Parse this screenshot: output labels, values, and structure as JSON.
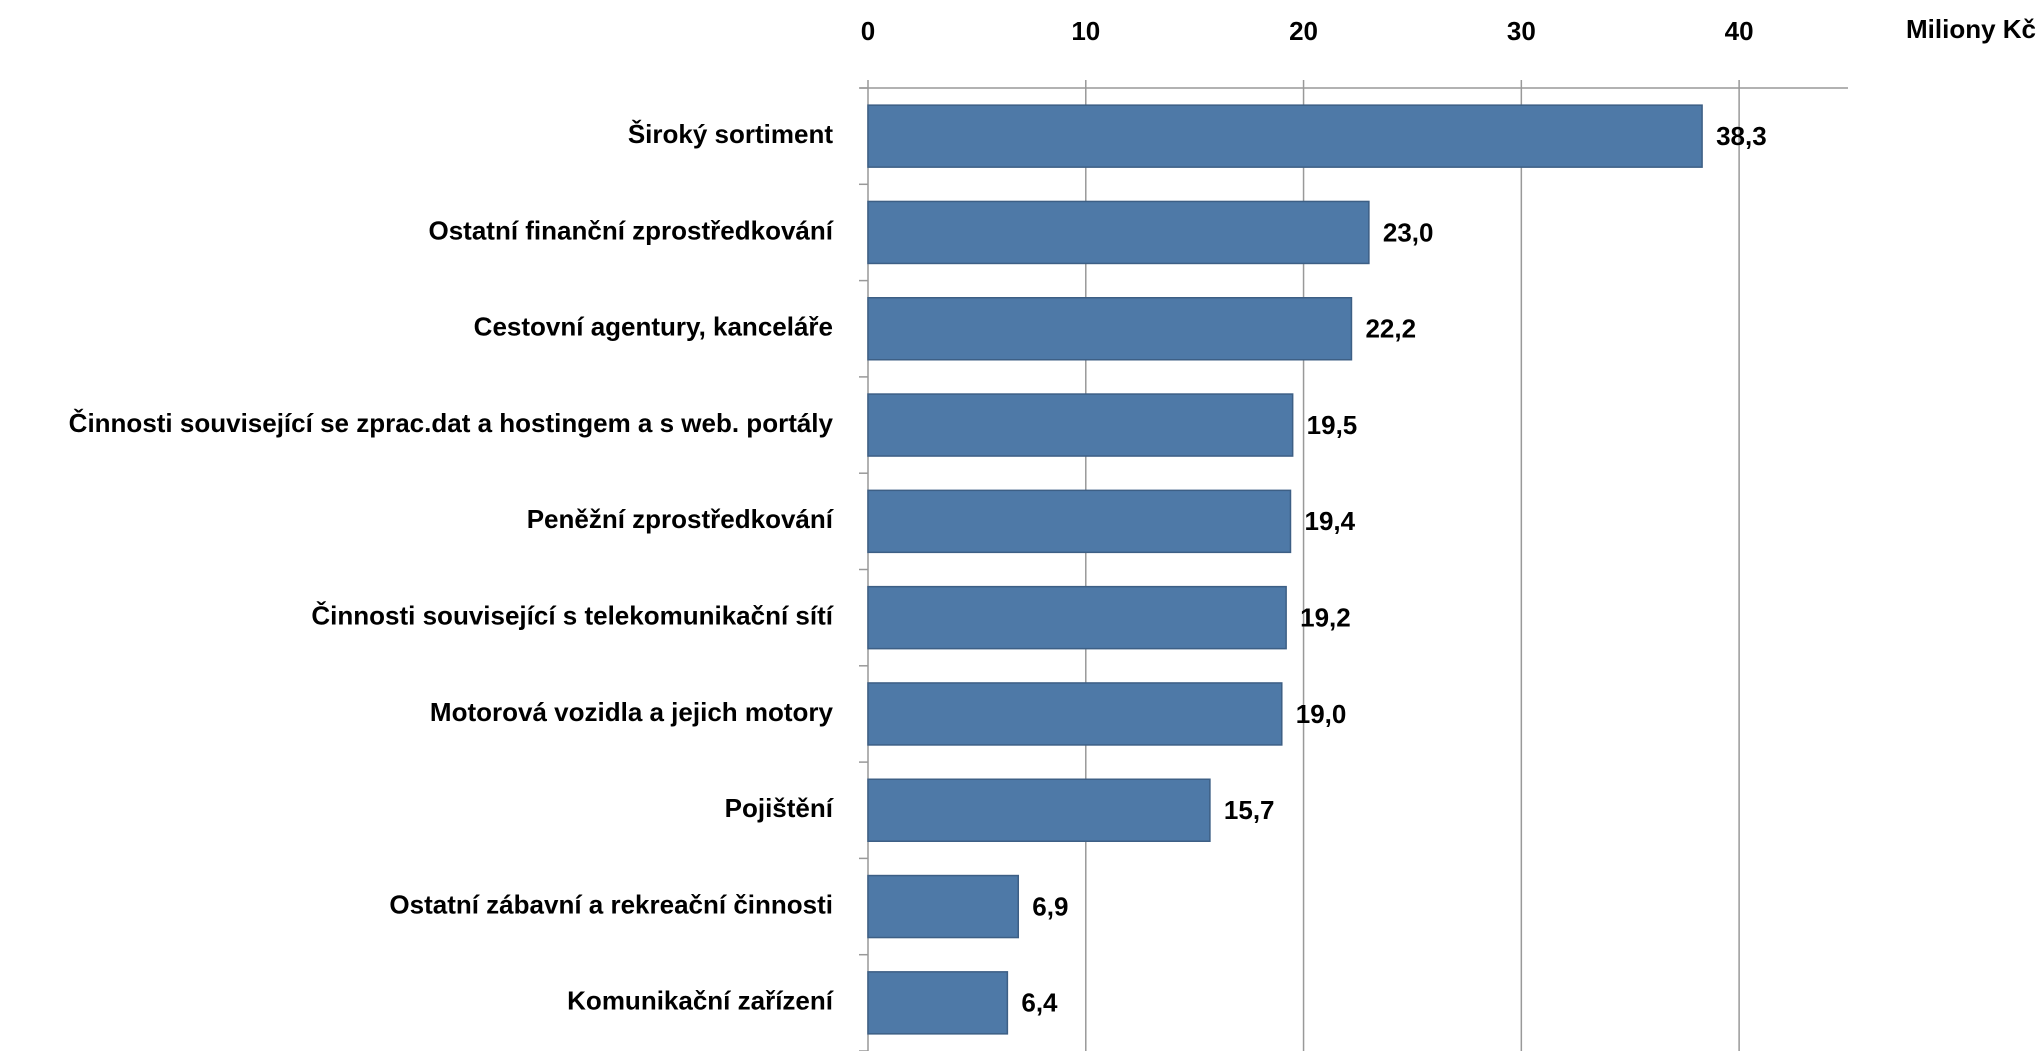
{
  "chart_data": {
    "type": "hbar",
    "x_label": "Miliony Kč",
    "categories": [
      "Široký sortiment",
      "Ostatní finanční zprostředkování",
      "Cestovní agentury, kanceláře",
      "Činnosti související se zprac.dat a hostingem a s web. portály",
      "Peněžní zprostředkování",
      "Činnosti související s telekomunikační sítí",
      "Motorová vozidla a jejich motory",
      "Pojištění",
      "Ostatní zábavní a rekreační činnosti",
      "Komunikační zařízení"
    ],
    "values": [
      38.3,
      23.0,
      22.2,
      19.5,
      19.4,
      19.2,
      19.0,
      15.7,
      6.9,
      6.4
    ],
    "value_labels": [
      "38,3",
      "23,0",
      "22,2",
      "19,5",
      "19,4",
      "19,2",
      "19,0",
      "15,7",
      "6,9",
      "6,4"
    ],
    "color": "#4e79a7",
    "xlim": [
      0,
      45
    ],
    "xticks": [
      0,
      10,
      20,
      30,
      40
    ],
    "grid": true
  }
}
